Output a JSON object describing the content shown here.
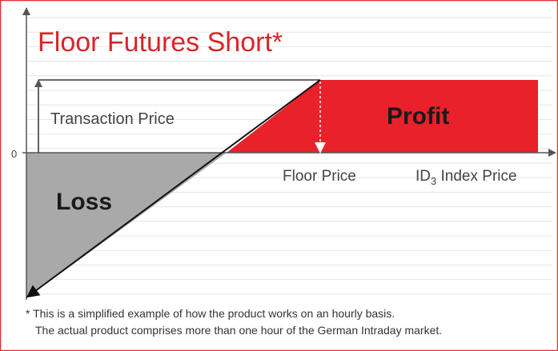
{
  "title": "Floor Futures Short*",
  "labels": {
    "transaction_price": "Transaction Price",
    "profit": "Profit",
    "loss": "Loss",
    "zero": "0",
    "floor_price": "Floor Price",
    "index_price": {
      "main": "ID",
      "sub": "3",
      "rest": " Index Price"
    }
  },
  "footnote": [
    "* This is a simplified example of how the product works on an hourly basis.",
    "The actual product comprises more than one hour of the German Intraday market."
  ]
}
